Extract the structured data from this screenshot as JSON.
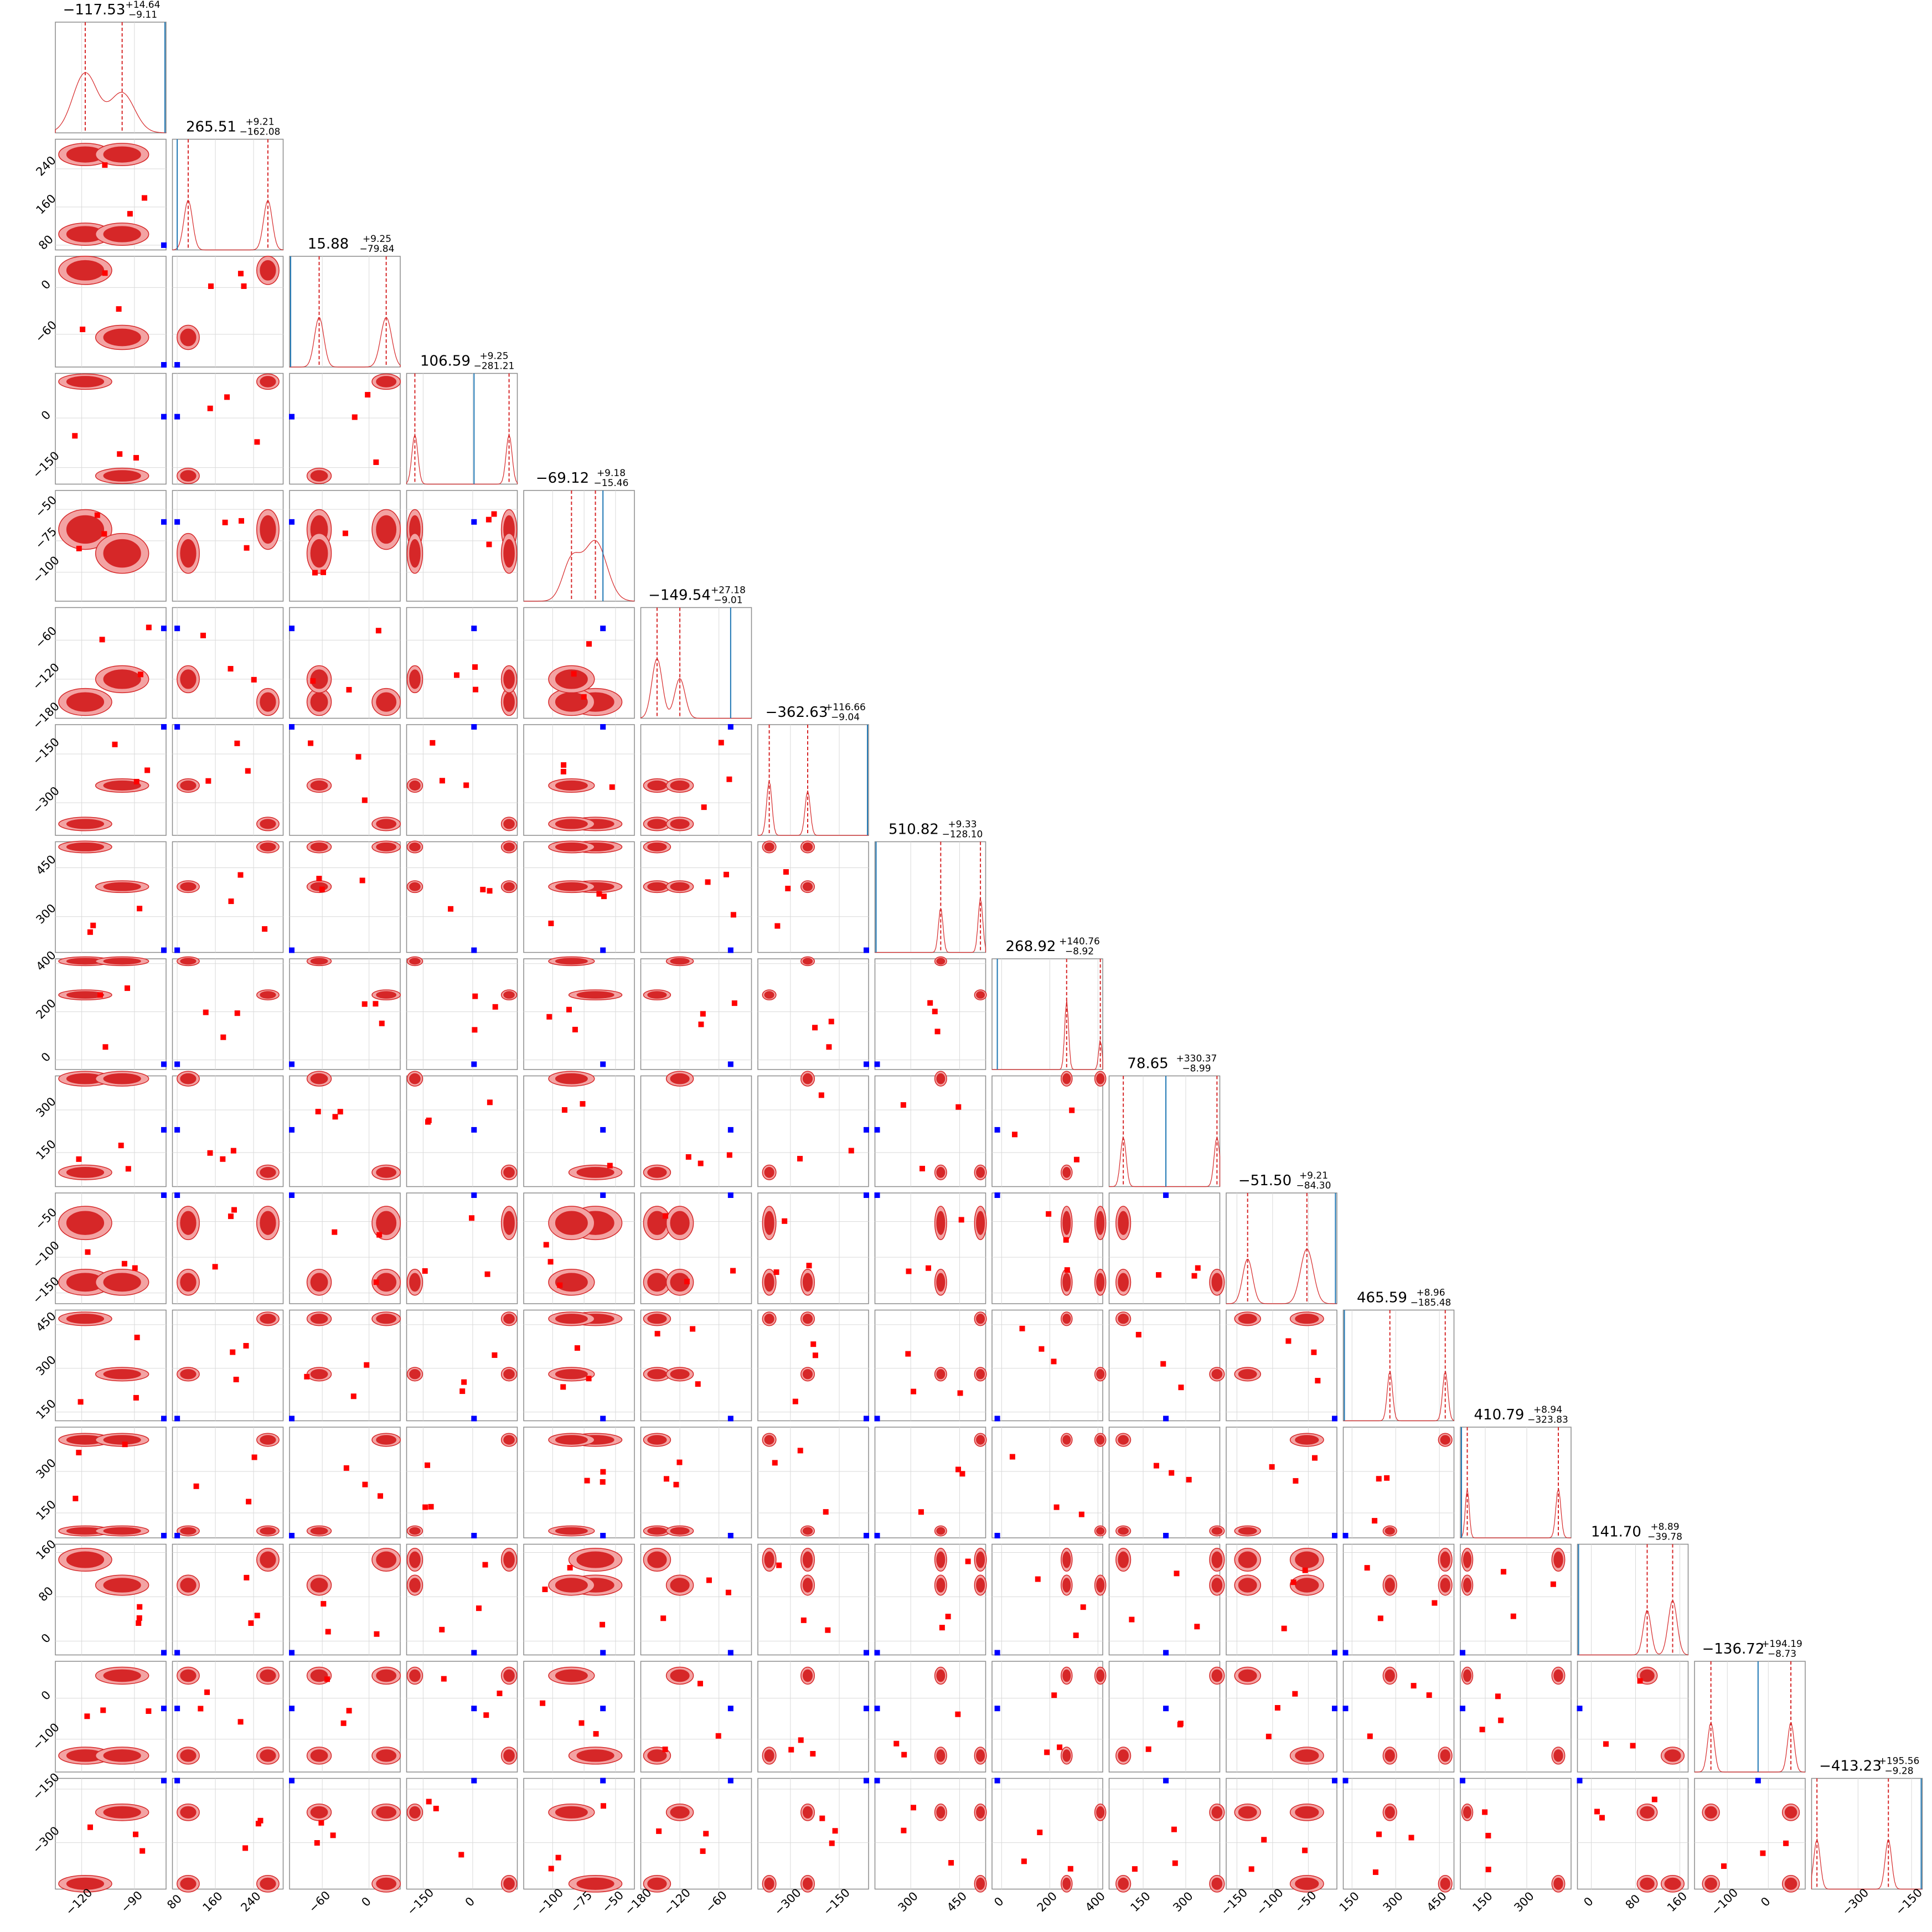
{
  "chart_data": {
    "type": "corner",
    "n_params": 17,
    "grid": true,
    "colors": {
      "posterior": "#d62728",
      "posterior_fill": "#f3a3a3",
      "reference": "#1f77b4",
      "reference_point": "#0000ff",
      "point": "#ff0000",
      "grid": "#d9d9d9",
      "frame": "#8c8c8c"
    },
    "params": [
      {
        "title": "−117.53",
        "plus": "+14.64",
        "minus": "−9.11",
        "range": [
          -135,
          -72
        ],
        "ticks": [
          "−120",
          "−90"
        ],
        "tick_values": [
          -120,
          -90
        ],
        "modes": [
          -118,
          -97
        ],
        "mode_weights": [
          0.6,
          0.4
        ],
        "widths": [
          7,
          7
        ],
        "truth": -72
      },
      {
        "title": "265.51",
        "plus": "+9.21",
        "minus": "−162.08",
        "range": [
          70,
          302
        ],
        "ticks": [
          "80",
          "160",
          "240"
        ],
        "tick_values": [
          80,
          160,
          240
        ],
        "modes": [
          270,
          103
        ],
        "mode_weights": [
          0.5,
          0.5
        ],
        "widths": [
          9,
          9
        ],
        "truth": 80
      },
      {
        "title": "15.88",
        "plus": "+9.25",
        "minus": "−79.84",
        "range": [
          -102,
          40
        ],
        "ticks": [
          "−60",
          "0"
        ],
        "tick_values": [
          -60,
          0
        ],
        "modes": [
          22,
          -64
        ],
        "mode_weights": [
          0.5,
          0.5
        ],
        "widths": [
          7,
          6
        ],
        "truth": -102
      },
      {
        "title": "106.59",
        "plus": "+9.25",
        "minus": "−281.21",
        "range": [
          -200,
          135
        ],
        "ticks": [
          "−150",
          "0"
        ],
        "tick_values": [
          -150,
          0
        ],
        "modes": [
          110,
          -175
        ],
        "mode_weights": [
          0.5,
          0.5
        ],
        "widths": [
          9,
          9
        ],
        "truth": 4
      },
      {
        "title": "−69.12",
        "plus": "+9.18",
        "minus": "−15.46",
        "range": [
          -123,
          -35
        ],
        "ticks": [
          "−100",
          "−75",
          "−50"
        ],
        "tick_values": [
          -100,
          -75,
          -50
        ],
        "modes": [
          -66,
          -85
        ],
        "mode_weights": [
          0.6,
          0.4
        ],
        "widths": [
          9,
          7
        ],
        "truth": -60
      },
      {
        "title": "−149.54",
        "plus": "+27.18",
        "minus": "−9.01",
        "range": [
          -180,
          -10
        ],
        "ticks": [
          "−180",
          "−120",
          "−60"
        ],
        "tick_values": [
          -180,
          -120,
          -60
        ],
        "modes": [
          -155,
          -120
        ],
        "mode_weights": [
          0.6,
          0.4
        ],
        "widths": [
          8,
          8
        ],
        "truth": -42
      },
      {
        "title": "−362.63",
        "plus": "+116.66",
        "minus": "−9.04",
        "range": [
          -400,
          -60
        ],
        "ticks": [
          "−300",
          "−150"
        ],
        "tick_values": [
          -300,
          -150
        ],
        "modes": [
          -365,
          -247
        ],
        "mode_weights": [
          0.55,
          0.45
        ],
        "widths": [
          8,
          8
        ],
        "truth": -60
      },
      {
        "title": "510.82",
        "plus": "+9.33",
        "minus": "−128.10",
        "range": [
          190,
          530
        ],
        "ticks": [
          "300",
          "450"
        ],
        "tick_values": [
          300,
          450
        ],
        "modes": [
          514,
          392
        ],
        "mode_weights": [
          0.55,
          0.45
        ],
        "widths": [
          7,
          7
        ],
        "truth": 190
      },
      {
        "title": "268.92",
        "plus": "+140.76",
        "minus": "−8.92",
        "range": [
          -40,
          420
        ],
        "ticks": [
          "0",
          "200",
          "400"
        ],
        "tick_values": [
          0,
          200,
          400
        ],
        "modes": [
          270,
          410
        ],
        "mode_weights": [
          0.7,
          0.3
        ],
        "widths": [
          8,
          7
        ],
        "truth": -18
      },
      {
        "title": "78.65",
        "plus": "+330.37",
        "minus": "−8.99",
        "range": [
          30,
          420
        ],
        "ticks": [
          "150",
          "300"
        ],
        "tick_values": [
          150,
          300
        ],
        "modes": [
          80,
          410
        ],
        "mode_weights": [
          0.5,
          0.5
        ],
        "widths": [
          10,
          10
        ],
        "truth": 230
      },
      {
        "title": "−51.50",
        "plus": "+9.21",
        "minus": "−84.30",
        "range": [
          -165,
          -10
        ],
        "ticks": [
          "−150",
          "−100",
          "−50"
        ],
        "tick_values": [
          -150,
          -100,
          -50
        ],
        "modes": [
          -52,
          -135
        ],
        "mode_weights": [
          0.55,
          0.45
        ],
        "widths": [
          9,
          7
        ],
        "truth": -12
      },
      {
        "title": "465.59",
        "plus": "+8.96",
        "minus": "−185.48",
        "range": [
          120,
          500
        ],
        "ticks": [
          "150",
          "300",
          "450"
        ],
        "tick_values": [
          150,
          300,
          450
        ],
        "modes": [
          470,
          280
        ],
        "mode_weights": [
          0.5,
          0.5
        ],
        "widths": [
          9,
          9
        ],
        "truth": 120
      },
      {
        "title": "410.79",
        "plus": "+8.94",
        "minus": "−323.83",
        "range": [
          60,
          460
        ],
        "ticks": [
          "150",
          "300"
        ],
        "tick_values": [
          150,
          300
        ],
        "modes": [
          414,
          85
        ],
        "mode_weights": [
          0.5,
          0.5
        ],
        "widths": [
          9,
          7
        ],
        "truth": 60
      },
      {
        "title": "141.70",
        "plus": "+8.89",
        "minus": "−39.78",
        "range": [
          -25,
          175
        ],
        "ticks": [
          "0",
          "80",
          "160"
        ],
        "tick_values": [
          0,
          80,
          160
        ],
        "modes": [
          147,
          101
        ],
        "mode_weights": [
          0.55,
          0.45
        ],
        "widths": [
          8,
          7
        ],
        "truth": -25
      },
      {
        "title": "−136.72",
        "plus": "+194.19",
        "minus": "−8.73",
        "range": [
          -180,
          90
        ],
        "ticks": [
          "−100",
          "0"
        ],
        "tick_values": [
          -100,
          0
        ],
        "modes": [
          -140,
          55
        ],
        "mode_weights": [
          0.5,
          0.5
        ],
        "widths": [
          8,
          8
        ],
        "truth": -25
      },
      {
        "title": "−413.23",
        "plus": "+195.56",
        "minus": "−9.28",
        "range": [
          -430,
          -120
        ],
        "ticks": [
          "−300",
          "−150"
        ],
        "tick_values": [
          -300,
          -150
        ],
        "modes": [
          -415,
          -215
        ],
        "mode_weights": [
          0.5,
          0.5
        ],
        "widths": [
          9,
          9
        ],
        "truth": -120
      },
      {
        "title": "",
        "plus": "",
        "minus": "",
        "range": [
          0,
          1
        ],
        "ticks": [],
        "tick_values": [],
        "modes": [],
        "mode_weights": [],
        "widths": [],
        "truth": null
      }
    ]
  }
}
